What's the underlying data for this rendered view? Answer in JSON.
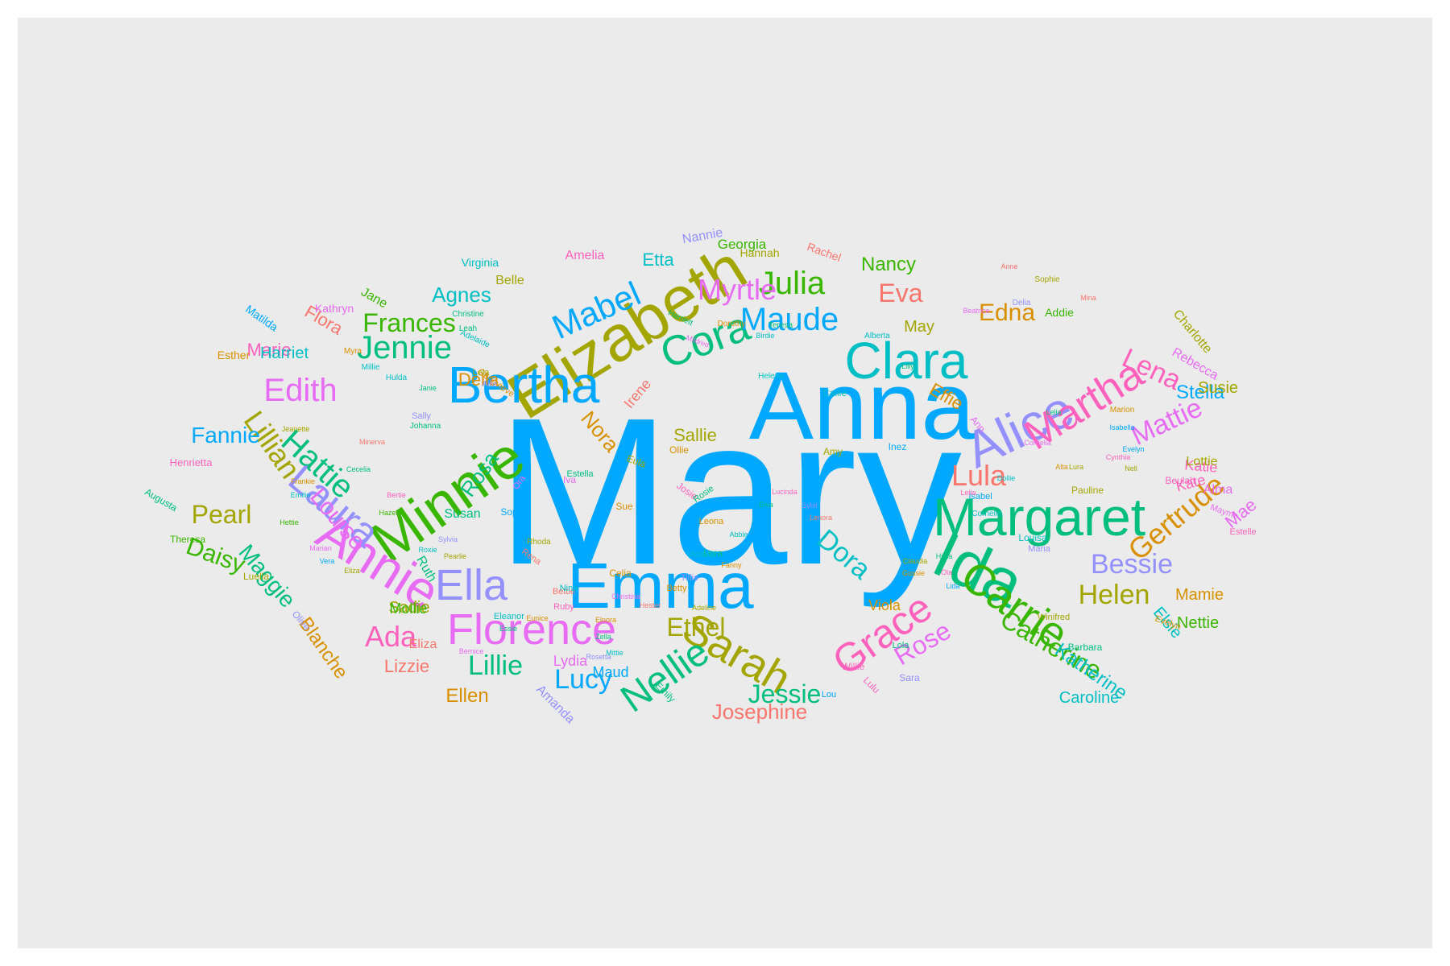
{
  "chart_data": {
    "type": "wordcloud",
    "background": "#ebebeb",
    "words": [
      {
        "text": "Mary",
        "color": "#00a9ff"
      },
      {
        "text": "Anna",
        "color": "#00a9ff"
      },
      {
        "text": "Emma",
        "color": "#00a9ff"
      },
      {
        "text": "Elizabeth",
        "color": "#a3a500"
      },
      {
        "text": "Minnie",
        "color": "#39b600"
      },
      {
        "text": "Margaret",
        "color": "#00bf7d"
      },
      {
        "text": "Ida",
        "color": "#00bf7d"
      },
      {
        "text": "Bertha",
        "color": "#00a9ff"
      },
      {
        "text": "Clara",
        "color": "#00bfc4"
      },
      {
        "text": "Alice",
        "color": "#9590ff"
      },
      {
        "text": "Annie",
        "color": "#e76bf3"
      },
      {
        "text": "Florence",
        "color": "#e76bf3"
      },
      {
        "text": "Martha",
        "color": "#ff62bc"
      },
      {
        "text": "Cora",
        "color": "#00bf7d"
      },
      {
        "text": "Laura",
        "color": "#9590ff"
      },
      {
        "text": "Sarah",
        "color": "#a3a500"
      },
      {
        "text": "Grace",
        "color": "#ff62bc"
      },
      {
        "text": "Carrie",
        "color": "#39b600"
      },
      {
        "text": "Ella",
        "color": "#9590ff"
      },
      {
        "text": "Nellie",
        "color": "#00bf7d"
      },
      {
        "text": "Mabel",
        "color": "#00a9ff"
      },
      {
        "text": "Gertrude",
        "color": "#d89000"
      },
      {
        "text": "Jennie",
        "color": "#00bf7d"
      },
      {
        "text": "Edith",
        "color": "#e76bf3"
      },
      {
        "text": "Julia",
        "color": "#39b600"
      },
      {
        "text": "Maude",
        "color": "#00a9ff"
      },
      {
        "text": "Hattie",
        "color": "#00bf7d"
      },
      {
        "text": "Lillian",
        "color": "#a3a500"
      },
      {
        "text": "Bessie",
        "color": "#9590ff"
      },
      {
        "text": "Catherine",
        "color": "#39b600"
      },
      {
        "text": "Lena",
        "color": "#ff62bc"
      },
      {
        "text": "Mattie",
        "color": "#e76bf3"
      },
      {
        "text": "Myrtle",
        "color": "#e76bf3"
      },
      {
        "text": "Lula",
        "color": "#f8766d"
      },
      {
        "text": "Helen",
        "color": "#a3a500"
      },
      {
        "text": "Dora",
        "color": "#00bfc4"
      },
      {
        "text": "Ada",
        "color": "#ff62bc"
      },
      {
        "text": "Frances",
        "color": "#39b600"
      },
      {
        "text": "Pearl",
        "color": "#a3a500"
      },
      {
        "text": "Lucy",
        "color": "#00a9ff"
      },
      {
        "text": "Lillie",
        "color": "#00bf7d"
      },
      {
        "text": "Rose",
        "color": "#e76bf3"
      },
      {
        "text": "Jessie",
        "color": "#00bf7d"
      },
      {
        "text": "Ethel",
        "color": "#a3a500"
      },
      {
        "text": "Louise",
        "color": "#e76bf3"
      },
      {
        "text": "Fannie",
        "color": "#00a9ff"
      },
      {
        "text": "Edna",
        "color": "#d89000"
      },
      {
        "text": "Eva",
        "color": "#f8766d"
      },
      {
        "text": "Daisy",
        "color": "#39b600"
      },
      {
        "text": "Maggie",
        "color": "#00bf7d"
      },
      {
        "text": "Josephine",
        "color": "#f8766d"
      },
      {
        "text": "Agnes",
        "color": "#00bfc4"
      },
      {
        "text": "Nancy",
        "color": "#39b600"
      },
      {
        "text": "Rosa",
        "color": "#00bf7d"
      },
      {
        "text": "Nora",
        "color": "#d89000"
      },
      {
        "text": "Katherine",
        "color": "#00bfc4"
      },
      {
        "text": "Stella",
        "color": "#00a9ff"
      },
      {
        "text": "Sallie",
        "color": "#a3a500"
      },
      {
        "text": "Effie",
        "color": "#d89000"
      },
      {
        "text": "Etta",
        "color": "#00bfc4"
      },
      {
        "text": "Mae",
        "color": "#e76bf3"
      },
      {
        "text": "Blanche",
        "color": "#d89000"
      },
      {
        "text": "Ellen",
        "color": "#d89000"
      },
      {
        "text": "Marie",
        "color": "#ff62bc"
      },
      {
        "text": "Lizzie",
        "color": "#f8766d"
      },
      {
        "text": "Mamie",
        "color": "#d89000"
      },
      {
        "text": "Caroline",
        "color": "#00bfc4"
      },
      {
        "text": "Harriet",
        "color": "#00bfc4"
      },
      {
        "text": "Della",
        "color": "#d89000"
      },
      {
        "text": "May",
        "color": "#a3a500"
      },
      {
        "text": "Flora",
        "color": "#f8766d"
      },
      {
        "text": "Susie",
        "color": "#a3a500"
      },
      {
        "text": "Nettie",
        "color": "#39b600"
      },
      {
        "text": "Elsie",
        "color": "#00bfc4"
      },
      {
        "text": "Sadie",
        "color": "#a3a500"
      },
      {
        "text": "Katie",
        "color": "#ff62bc"
      },
      {
        "text": "Kate",
        "color": "#ff62bc"
      },
      {
        "text": "Maud",
        "color": "#00a9ff"
      },
      {
        "text": "Lydia",
        "color": "#e76bf3"
      },
      {
        "text": "Irene",
        "color": "#f8766d"
      },
      {
        "text": "Viola",
        "color": "#d89000"
      },
      {
        "text": "Mollie",
        "color": "#39b600"
      },
      {
        "text": "Lottie",
        "color": "#a3a500"
      },
      {
        "text": "Alma",
        "color": "#e76bf3"
      },
      {
        "text": "Eliza",
        "color": "#f8766d"
      },
      {
        "text": "Susan",
        "color": "#00bf7d"
      },
      {
        "text": "Ruth",
        "color": "#00bf7d"
      },
      {
        "text": "Georgia",
        "color": "#39b600"
      },
      {
        "text": "Nannie",
        "color": "#9590ff"
      },
      {
        "text": "Amelia",
        "color": "#ff62bc"
      },
      {
        "text": "Virginia",
        "color": "#00bfc4"
      },
      {
        "text": "Belle",
        "color": "#a3a500"
      },
      {
        "text": "Jane",
        "color": "#39b600"
      },
      {
        "text": "Kathryn",
        "color": "#e76bf3"
      },
      {
        "text": "Matilda",
        "color": "#00a9ff"
      },
      {
        "text": "Esther",
        "color": "#d89000"
      },
      {
        "text": "Hannah",
        "color": "#a3a500"
      },
      {
        "text": "Rachel",
        "color": "#f8766d"
      },
      {
        "text": "Addie",
        "color": "#39b600"
      },
      {
        "text": "Charlotte",
        "color": "#a3a500"
      },
      {
        "text": "Rebecca",
        "color": "#e76bf3"
      },
      {
        "text": "Henrietta",
        "color": "#ff62bc"
      },
      {
        "text": "Augusta",
        "color": "#00bf7d"
      },
      {
        "text": "Theresa",
        "color": "#39b600"
      },
      {
        "text": "Luella",
        "color": "#a3a500"
      },
      {
        "text": "Olive",
        "color": "#9590ff"
      },
      {
        "text": "Amanda",
        "color": "#9590ff"
      },
      {
        "text": "Emily",
        "color": "#00bf7d"
      },
      {
        "text": "Lulu",
        "color": "#ff62bc"
      },
      {
        "text": "Pauline",
        "color": "#a3a500"
      },
      {
        "text": "Louisa",
        "color": "#00bfc4"
      },
      {
        "text": "Maria",
        "color": "#9590ff"
      },
      {
        "text": "Beulah",
        "color": "#ff62bc"
      },
      {
        "text": "Mayme",
        "color": "#e76bf3"
      },
      {
        "text": "Estelle",
        "color": "#ff62bc"
      },
      {
        "text": "Evelyn",
        "color": "#d89000"
      },
      {
        "text": "Barbara",
        "color": "#00bf7d"
      },
      {
        "text": "Winifred",
        "color": "#a3a500"
      },
      {
        "text": "Lola",
        "color": "#00bf7d"
      },
      {
        "text": "Willie",
        "color": "#ff62bc"
      },
      {
        "text": "Sara",
        "color": "#9590ff"
      },
      {
        "text": "Lou",
        "color": "#00a9ff"
      },
      {
        "text": "Inez",
        "color": "#00a9ff"
      },
      {
        "text": "Ann",
        "color": "#e76bf3"
      },
      {
        "text": "Amy",
        "color": "#a3a500"
      },
      {
        "text": "Callie",
        "color": "#00bfc4"
      },
      {
        "text": "Ollie",
        "color": "#d89000"
      },
      {
        "text": "Josie",
        "color": "#ff62bc"
      },
      {
        "text": "Rosie",
        "color": "#00bf7d"
      },
      {
        "text": "Iva",
        "color": "#e76bf3"
      },
      {
        "text": "Ora",
        "color": "#e76bf3"
      },
      {
        "text": "Estella",
        "color": "#00bf7d"
      },
      {
        "text": "Sophia",
        "color": "#00a9ff"
      },
      {
        "text": "Eula",
        "color": "#a3a500"
      },
      {
        "text": "Sue",
        "color": "#d89000"
      },
      {
        "text": "Leona",
        "color": "#d89000"
      },
      {
        "text": "Lora",
        "color": "#00bf7d"
      },
      {
        "text": "Isabel",
        "color": "#00a9ff"
      },
      {
        "text": "Cornelia",
        "color": "#00bfc4"
      },
      {
        "text": "Tillie",
        "color": "#9590ff"
      },
      {
        "text": "Betty",
        "color": "#d89000"
      },
      {
        "text": "Victoria",
        "color": "#00bfc4"
      },
      {
        "text": "Ruby",
        "color": "#ff62bc"
      },
      {
        "text": "Bettie",
        "color": "#f8766d"
      },
      {
        "text": "Celia",
        "color": "#d89000"
      },
      {
        "text": "Nina",
        "color": "#00bfc4"
      },
      {
        "text": "Rena",
        "color": "#f8766d"
      },
      {
        "text": "Rhoda",
        "color": "#a3a500"
      },
      {
        "text": "Eleanor",
        "color": "#00bfc4"
      },
      {
        "text": "Sally",
        "color": "#9590ff"
      },
      {
        "text": "Johanna",
        "color": "#00bf7d"
      },
      {
        "text": "Genevieve",
        "color": "#d89000"
      },
      {
        "text": "Lela",
        "color": "#a3a500"
      },
      {
        "text": "Allie",
        "color": "#9590ff"
      },
      {
        "text": "Millie",
        "color": "#00bfc4"
      },
      {
        "text": "Myra",
        "color": "#d89000"
      },
      {
        "text": "Hulda",
        "color": "#00bfc4"
      },
      {
        "text": "Janie",
        "color": "#00bf7d"
      },
      {
        "text": "Leah",
        "color": "#00bf7d"
      },
      {
        "text": "Christine",
        "color": "#00bf7d"
      },
      {
        "text": "Adelaide",
        "color": "#00bfc4"
      },
      {
        "text": "Harriett",
        "color": "#00bf7d"
      },
      {
        "text": "Mildred",
        "color": "#e76bf3"
      },
      {
        "text": "Dorothy",
        "color": "#d89000"
      },
      {
        "text": "Birdie",
        "color": "#00bfc4"
      },
      {
        "text": "Helena",
        "color": "#00bfc4"
      },
      {
        "text": "Teresa",
        "color": "#00bf7d"
      },
      {
        "text": "Alberta",
        "color": "#00bfc4"
      },
      {
        "text": "Lilly",
        "color": "#00bf7d"
      },
      {
        "text": "Delia",
        "color": "#9590ff"
      },
      {
        "text": "Mina",
        "color": "#f8766d"
      },
      {
        "text": "Anne",
        "color": "#f8766d"
      },
      {
        "text": "Sophie",
        "color": "#a3a500"
      },
      {
        "text": "Beatrice",
        "color": "#e76bf3"
      },
      {
        "text": "Lelia",
        "color": "#00bf7d"
      },
      {
        "text": "Marion",
        "color": "#d89000"
      },
      {
        "text": "Isabella",
        "color": "#00a9ff"
      },
      {
        "text": "Cynthia",
        "color": "#ff62bc"
      },
      {
        "text": "Evelyn",
        "color": "#00a9ff"
      },
      {
        "text": "Nell",
        "color": "#a3a500"
      },
      {
        "text": "Lura",
        "color": "#a3a500"
      },
      {
        "text": "Alta",
        "color": "#d89000"
      },
      {
        "text": "Cordelia",
        "color": "#e76bf3"
      },
      {
        "text": "Leila",
        "color": "#ff62bc"
      },
      {
        "text": "Dollie",
        "color": "#00bfc4"
      },
      {
        "text": "Claudia",
        "color": "#a3a500"
      },
      {
        "text": "Gussie",
        "color": "#d89000"
      },
      {
        "text": "Ola",
        "color": "#ff62bc"
      },
      {
        "text": "Lida",
        "color": "#00a9ff"
      },
      {
        "text": "Hilda",
        "color": "#00bf7d"
      },
      {
        "text": "Sybil",
        "color": "#9590ff"
      },
      {
        "text": "Lenora",
        "color": "#f8766d"
      },
      {
        "text": "Lucinda",
        "color": "#ff62bc"
      },
      {
        "text": "Elva",
        "color": "#00bf7d"
      },
      {
        "text": "Abbie",
        "color": "#00bfc4"
      },
      {
        "text": "Fanny",
        "color": "#d89000"
      },
      {
        "text": "Adeline",
        "color": "#a3a500"
      },
      {
        "text": "Hester",
        "color": "#f8766d"
      },
      {
        "text": "Christina",
        "color": "#e76bf3"
      },
      {
        "text": "Elnora",
        "color": "#d89000"
      },
      {
        "text": "Zella",
        "color": "#00bf7d"
      },
      {
        "text": "Rosetta",
        "color": "#9590ff"
      },
      {
        "text": "Mittie",
        "color": "#00bfc4"
      },
      {
        "text": "Eunice",
        "color": "#d89000"
      },
      {
        "text": "Essie",
        "color": "#00bf7d"
      },
      {
        "text": "Bernice",
        "color": "#e76bf3"
      },
      {
        "text": "Pearlie",
        "color": "#a3a500"
      },
      {
        "text": "Roxie",
        "color": "#00bfc4"
      },
      {
        "text": "Sylvia",
        "color": "#9590ff"
      },
      {
        "text": "Hazel",
        "color": "#39b600"
      },
      {
        "text": "Bertie",
        "color": "#ff62bc"
      },
      {
        "text": "Cecelia",
        "color": "#00bf7d"
      },
      {
        "text": "Minerva",
        "color": "#f8766d"
      },
      {
        "text": "Jeanette",
        "color": "#a3a500"
      },
      {
        "text": "Frankie",
        "color": "#d89000"
      },
      {
        "text": "Emilie",
        "color": "#00bfc4"
      },
      {
        "text": "Hettie",
        "color": "#39b600"
      },
      {
        "text": "Marian",
        "color": "#e76bf3"
      },
      {
        "text": "Vera",
        "color": "#00a9ff"
      },
      {
        "text": "Eliza",
        "color": "#a3a500"
      },
      {
        "text": "Jennie",
        "color": "#f8766d"
      }
    ]
  }
}
